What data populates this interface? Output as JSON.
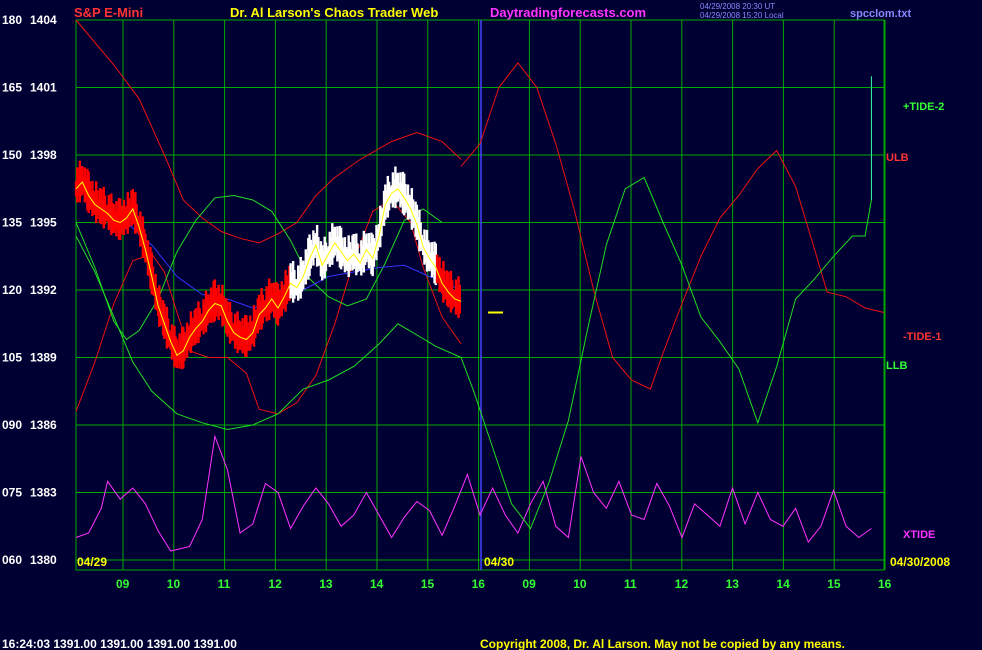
{
  "header": {
    "instrument": "S&P E-Mini",
    "title": "Dr. Al Larson's Chaos Trader Web",
    "site": "Daytradingforecasts.com",
    "stamp_line1": "04/29/2008 20:30 UT",
    "stamp_line2": "04/29/2008 15:20 Local",
    "data_file": "spcclom.txt"
  },
  "footer": {
    "quote": "16:24:03  1391.00 1391.00 1391.00 1391.00",
    "copyright": "Copyright 2008, Dr. Al Larson. May not be copied by any means."
  },
  "colors": {
    "background": "#000033",
    "grid": "#00aa00",
    "price_white": "#ffffff",
    "price_red": "#ff0000",
    "ulb": "#ee1111",
    "llb": "#22dd22",
    "blue": "#3333ff",
    "xtide": "#ff33ff",
    "yellow": "#ffff00"
  },
  "chart_data": {
    "type": "line",
    "title": "S&P E-Mini",
    "y_axis": {
      "ticks": [
        {
          "osc": "180",
          "price": "1404",
          "value": 1404
        },
        {
          "osc": "165",
          "price": "1401",
          "value": 1401
        },
        {
          "osc": "150",
          "price": "1398",
          "value": 1398
        },
        {
          "osc": "135",
          "price": "1395",
          "value": 1395
        },
        {
          "osc": "120",
          "price": "1392",
          "value": 1392
        },
        {
          "osc": "105",
          "price": "1389",
          "value": 1389
        },
        {
          "osc": "090",
          "price": "1386",
          "value": 1386
        },
        {
          "osc": "075",
          "price": "1383",
          "value": 1383
        },
        {
          "osc": "060",
          "price": "1380",
          "value": 1380
        }
      ],
      "range": [
        1380,
        1404
      ]
    },
    "x_axis": {
      "hour_ticks": [
        "09",
        "10",
        "11",
        "12",
        "13",
        "14",
        "15",
        "16",
        "09",
        "10",
        "11",
        "12",
        "13",
        "14",
        "15",
        "16"
      ],
      "day_labels": [
        "04/29",
        "04/30",
        "04/30/2008"
      ]
    },
    "series_labels": {
      "tide2": "+TIDE-2",
      "ulb": "ULB",
      "tide1": "-TIDE-1",
      "llb": "LLB",
      "xtide": "XTIDE"
    },
    "grid": true,
    "price_bars_white": [
      [
        0.0,
        1396.5
      ],
      [
        0.1,
        1396.8
      ],
      [
        0.2,
        1396.2
      ],
      [
        0.3,
        1395.8
      ],
      [
        0.4,
        1395.6
      ],
      [
        0.5,
        1395.4
      ],
      [
        0.6,
        1395.1
      ],
      [
        0.7,
        1395.0
      ],
      [
        0.8,
        1395.2
      ],
      [
        0.9,
        1395.6
      ],
      [
        1.0,
        1394.8
      ],
      [
        1.1,
        1393.8
      ],
      [
        1.2,
        1392.6
      ],
      [
        1.3,
        1391.3
      ],
      [
        1.4,
        1390.5
      ],
      [
        1.5,
        1389.7
      ],
      [
        1.6,
        1389.1
      ],
      [
        1.7,
        1389.3
      ],
      [
        1.8,
        1389.9
      ],
      [
        1.9,
        1390.3
      ],
      [
        2.0,
        1390.6
      ],
      [
        2.1,
        1391.1
      ],
      [
        2.2,
        1391.4
      ],
      [
        2.3,
        1391.3
      ],
      [
        2.4,
        1390.6
      ],
      [
        2.5,
        1390.1
      ],
      [
        2.6,
        1389.9
      ],
      [
        2.7,
        1389.8
      ],
      [
        2.8,
        1390.1
      ],
      [
        2.9,
        1390.9
      ],
      [
        3.0,
        1391.2
      ],
      [
        3.1,
        1391.6
      ],
      [
        3.2,
        1391.2
      ],
      [
        3.3,
        1391.7
      ],
      [
        3.4,
        1392.3
      ],
      [
        3.5,
        1392.1
      ],
      [
        3.6,
        1392.6
      ],
      [
        3.7,
        1393.4
      ],
      [
        3.8,
        1394.0
      ],
      [
        3.9,
        1393.1
      ],
      [
        4.0,
        1393.6
      ],
      [
        4.1,
        1394.1
      ],
      [
        4.2,
        1393.7
      ],
      [
        4.3,
        1393.3
      ],
      [
        4.4,
        1393.6
      ],
      [
        4.5,
        1393.2
      ],
      [
        4.6,
        1393.8
      ],
      [
        4.7,
        1393.4
      ],
      [
        4.8,
        1394.4
      ],
      [
        4.9,
        1395.8
      ],
      [
        5.0,
        1396.3
      ],
      [
        5.1,
        1396.5
      ],
      [
        5.2,
        1396.1
      ],
      [
        5.3,
        1395.6
      ],
      [
        5.4,
        1394.9
      ],
      [
        5.5,
        1393.9
      ],
      [
        5.6,
        1393.4
      ],
      [
        5.7,
        1393.0
      ],
      [
        5.8,
        1392.3
      ],
      [
        5.9,
        1391.9
      ],
      [
        6.0,
        1391.6
      ],
      [
        6.1,
        1391.5
      ]
    ],
    "bands": {
      "ulb": [
        [
          0.0,
          1404
        ],
        [
          0.3,
          1403
        ],
        [
          0.6,
          1402
        ],
        [
          1.0,
          1400.5
        ],
        [
          1.4,
          1398
        ],
        [
          1.7,
          1396
        ],
        [
          2.0,
          1395.2
        ],
        [
          2.3,
          1394.6
        ],
        [
          2.6,
          1394.3
        ],
        [
          2.9,
          1394.1
        ],
        [
          3.2,
          1394.5
        ],
        [
          3.5,
          1395
        ],
        [
          3.8,
          1396.2
        ],
        [
          4.1,
          1397.0
        ],
        [
          4.5,
          1397.8
        ],
        [
          5.0,
          1398.6
        ],
        [
          5.4,
          1399.0
        ],
        [
          5.8,
          1398.6
        ],
        [
          6.1,
          1397.8
        ]
      ],
      "llb": [
        [
          0.0,
          1395
        ],
        [
          0.3,
          1393
        ],
        [
          0.6,
          1390.6
        ],
        [
          0.8,
          1389.8
        ],
        [
          1.0,
          1390.2
        ],
        [
          1.3,
          1391.6
        ],
        [
          1.6,
          1393.7
        ],
        [
          1.9,
          1395.1
        ],
        [
          2.2,
          1396.1
        ],
        [
          2.5,
          1396.2
        ],
        [
          2.8,
          1396
        ],
        [
          3.1,
          1395.5
        ],
        [
          3.4,
          1394.2
        ],
        [
          3.7,
          1392.5
        ],
        [
          4.0,
          1391.7
        ],
        [
          4.3,
          1391.3
        ],
        [
          4.6,
          1391.6
        ],
        [
          4.9,
          1393.2
        ],
        [
          5.2,
          1395.1
        ],
        [
          5.5,
          1395.6
        ],
        [
          5.8,
          1395.0
        ]
      ],
      "red_lower": [
        [
          0.0,
          1386.6
        ],
        [
          0.3,
          1388.8
        ],
        [
          0.6,
          1391.4
        ],
        [
          0.9,
          1393.3
        ],
        [
          1.2,
          1393.6
        ],
        [
          1.4,
          1392.8
        ],
        [
          1.6,
          1391.0
        ],
        [
          1.8,
          1389.3
        ],
        [
          2.1,
          1389.0
        ],
        [
          2.4,
          1389.0
        ],
        [
          2.7,
          1388.3
        ],
        [
          2.9,
          1386.7
        ],
        [
          3.2,
          1386.5
        ],
        [
          3.5,
          1387.0
        ],
        [
          3.8,
          1388.2
        ],
        [
          4.1,
          1390.5
        ],
        [
          4.4,
          1393.3
        ],
        [
          4.7,
          1395.5
        ],
        [
          5.0,
          1396.0
        ],
        [
          5.3,
          1395.0
        ],
        [
          5.5,
          1393.0
        ],
        [
          5.8,
          1390.8
        ],
        [
          6.1,
          1389.6
        ]
      ],
      "green_lower": [
        [
          0.0,
          1394.4
        ],
        [
          0.3,
          1392.8
        ],
        [
          0.6,
          1390.8
        ],
        [
          0.9,
          1388.8
        ],
        [
          1.2,
          1387.5
        ],
        [
          1.6,
          1386.5
        ],
        [
          2.0,
          1386.1
        ],
        [
          2.4,
          1385.8
        ],
        [
          2.8,
          1386.0
        ],
        [
          3.2,
          1386.5
        ],
        [
          3.6,
          1387.6
        ],
        [
          4.0,
          1388.0
        ],
        [
          4.4,
          1388.6
        ],
        [
          4.8,
          1389.6
        ],
        [
          5.1,
          1390.5
        ],
        [
          5.4,
          1390.0
        ],
        [
          5.7,
          1389.5
        ],
        [
          6.1,
          1389.0
        ]
      ],
      "blue": [
        [
          0.0,
          1396.8
        ],
        [
          0.4,
          1395.8
        ],
        [
          0.8,
          1395.0
        ],
        [
          1.2,
          1394.0
        ],
        [
          1.6,
          1392.6
        ],
        [
          2.0,
          1391.8
        ],
        [
          2.4,
          1391.6
        ],
        [
          2.8,
          1391.2
        ],
        [
          3.2,
          1391.5
        ],
        [
          3.6,
          1392.0
        ],
        [
          4.0,
          1392.6
        ],
        [
          4.4,
          1392.8
        ],
        [
          4.8,
          1393.0
        ],
        [
          5.2,
          1393.1
        ],
        [
          5.6,
          1392.6
        ],
        [
          6.1,
          1392.0
        ]
      ]
    },
    "forecast": {
      "red": [
        [
          6.1,
          1397.5
        ],
        [
          6.4,
          1398.5
        ],
        [
          6.7,
          1401.0
        ],
        [
          7.0,
          1402.1
        ],
        [
          7.3,
          1401.0
        ],
        [
          7.6,
          1398.5
        ],
        [
          7.9,
          1395.5
        ],
        [
          8.2,
          1392.0
        ],
        [
          8.5,
          1389.0
        ],
        [
          8.8,
          1388.0
        ],
        [
          9.1,
          1387.6
        ],
        [
          9.3,
          1389.2
        ],
        [
          9.6,
          1391.4
        ],
        [
          9.9,
          1393.5
        ],
        [
          10.2,
          1395.2
        ],
        [
          10.5,
          1396.2
        ],
        [
          10.8,
          1397.4
        ],
        [
          11.1,
          1398.2
        ],
        [
          11.4,
          1396.6
        ],
        [
          11.7,
          1393.8
        ],
        [
          11.9,
          1391.9
        ],
        [
          12.2,
          1391.7
        ],
        [
          12.5,
          1391.2
        ],
        [
          12.8,
          1391.0
        ]
      ],
      "green": [
        [
          6.1,
          1389.0
        ],
        [
          6.3,
          1387.5
        ],
        [
          6.6,
          1385.0
        ],
        [
          6.9,
          1382.5
        ],
        [
          7.2,
          1381.4
        ],
        [
          7.5,
          1383.5
        ],
        [
          7.8,
          1386.2
        ],
        [
          8.1,
          1390.2
        ],
        [
          8.4,
          1394.0
        ],
        [
          8.7,
          1396.5
        ],
        [
          9.0,
          1397.0
        ],
        [
          9.3,
          1395.0
        ],
        [
          9.6,
          1393.1
        ],
        [
          9.9,
          1390.8
        ],
        [
          10.2,
          1389.7
        ],
        [
          10.5,
          1388.5
        ],
        [
          10.8,
          1386.1
        ],
        [
          11.1,
          1388.6
        ],
        [
          11.4,
          1391.6
        ],
        [
          11.7,
          1392.5
        ],
        [
          12.0,
          1393.5
        ],
        [
          12.3,
          1394.4
        ],
        [
          12.5,
          1394.4
        ],
        [
          12.6,
          1396.0
        ]
      ],
      "tide2_tail": [
        [
          12.6,
          1396.0
        ],
        [
          12.6,
          1401.5
        ]
      ]
    },
    "xtide": [
      [
        0.0,
        1381.0
      ],
      [
        0.2,
        1381.2
      ],
      [
        0.4,
        1382.3
      ],
      [
        0.5,
        1383.5
      ],
      [
        0.7,
        1382.7
      ],
      [
        0.9,
        1383.2
      ],
      [
        1.1,
        1382.5
      ],
      [
        1.3,
        1381.3
      ],
      [
        1.5,
        1380.4
      ],
      [
        1.8,
        1380.6
      ],
      [
        2.0,
        1381.8
      ],
      [
        2.2,
        1385.5
      ],
      [
        2.4,
        1384.0
      ],
      [
        2.6,
        1381.2
      ],
      [
        2.8,
        1381.6
      ],
      [
        3.0,
        1383.4
      ],
      [
        3.2,
        1383.0
      ],
      [
        3.4,
        1381.4
      ],
      [
        3.6,
        1382.4
      ],
      [
        3.8,
        1383.2
      ],
      [
        4.0,
        1382.5
      ],
      [
        4.2,
        1381.5
      ],
      [
        4.4,
        1382.0
      ],
      [
        4.6,
        1383.0
      ],
      [
        4.8,
        1382.0
      ],
      [
        5.0,
        1381.0
      ],
      [
        5.2,
        1381.9
      ],
      [
        5.4,
        1382.6
      ],
      [
        5.6,
        1382.2
      ],
      [
        5.8,
        1381.1
      ],
      [
        6.0,
        1382.4
      ],
      [
        6.2,
        1383.8
      ],
      [
        6.4,
        1382.0
      ],
      [
        6.6,
        1383.2
      ],
      [
        6.8,
        1382.0
      ],
      [
        7.0,
        1381.2
      ],
      [
        7.2,
        1382.5
      ],
      [
        7.4,
        1383.5
      ],
      [
        7.6,
        1381.5
      ],
      [
        7.8,
        1381.0
      ],
      [
        8.0,
        1384.6
      ],
      [
        8.2,
        1383.0
      ],
      [
        8.4,
        1382.3
      ],
      [
        8.6,
        1383.5
      ],
      [
        8.8,
        1382.0
      ],
      [
        9.0,
        1381.8
      ],
      [
        9.2,
        1383.4
      ],
      [
        9.4,
        1382.4
      ],
      [
        9.6,
        1381.0
      ],
      [
        9.8,
        1382.5
      ],
      [
        10.0,
        1382.0
      ],
      [
        10.2,
        1381.5
      ],
      [
        10.4,
        1383.2
      ],
      [
        10.6,
        1381.6
      ],
      [
        10.8,
        1383.0
      ],
      [
        11.0,
        1381.8
      ],
      [
        11.2,
        1381.5
      ],
      [
        11.4,
        1382.3
      ],
      [
        11.6,
        1380.8
      ],
      [
        11.8,
        1381.5
      ],
      [
        12.0,
        1383.1
      ],
      [
        12.2,
        1381.5
      ],
      [
        12.4,
        1381.0
      ],
      [
        12.6,
        1381.4
      ]
    ],
    "last_price_marker": 1391.0
  }
}
